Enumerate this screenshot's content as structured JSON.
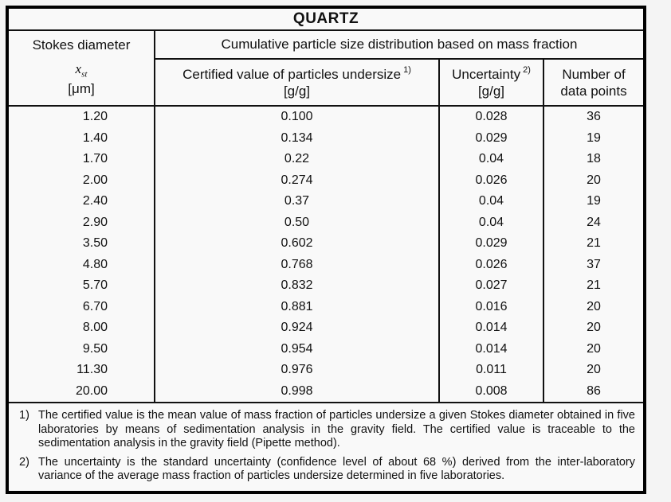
{
  "title": "QUARTZ",
  "header": {
    "col1": {
      "line1": "Stokes diameter",
      "symbol": "x",
      "symbol_sub": "st",
      "unit": "[μm]"
    },
    "span": "Cumulative particle size distribution based on mass fraction",
    "col2": {
      "label": "Certified value of particles undersize",
      "sup": "1)",
      "unit": "[g/g]"
    },
    "col3": {
      "label": "Uncertainty",
      "sup": "2)",
      "unit": "[g/g]"
    },
    "col4": {
      "line1": "Number of",
      "line2": "data points"
    }
  },
  "table": {
    "columns": [
      "Stokes diameter [μm]",
      "Certified value of particles undersize [g/g]",
      "Uncertainty [g/g]",
      "Number of data points"
    ],
    "rows": [
      [
        "1.20",
        "0.100",
        "0.028",
        "36"
      ],
      [
        "1.40",
        "0.134",
        "0.029",
        "19"
      ],
      [
        "1.70",
        "0.22",
        "0.04",
        "18"
      ],
      [
        "2.00",
        "0.274",
        "0.026",
        "20"
      ],
      [
        "2.40",
        "0.37",
        "0.04",
        "19"
      ],
      [
        "2.90",
        "0.50",
        "0.04",
        "24"
      ],
      [
        "3.50",
        "0.602",
        "0.029",
        "21"
      ],
      [
        "4.80",
        "0.768",
        "0.026",
        "37"
      ],
      [
        "5.70",
        "0.832",
        "0.027",
        "21"
      ],
      [
        "6.70",
        "0.881",
        "0.016",
        "20"
      ],
      [
        "8.00",
        "0.924",
        "0.014",
        "20"
      ],
      [
        "9.50",
        "0.954",
        "0.014",
        "20"
      ],
      [
        "11.30",
        "0.976",
        "0.011",
        "20"
      ],
      [
        "20.00",
        "0.998",
        "0.008",
        "86"
      ]
    ]
  },
  "footnotes": [
    {
      "marker": "1)",
      "text": "The certified value is the mean value of mass fraction of particles undersize a given Stokes diameter obtained in five laboratories by means of sedimentation analysis in the gravity field. The certified value is traceable to the sedimentation analysis in the gravity field (Pipette method)."
    },
    {
      "marker": "2)",
      "text": "The uncertainty is the standard uncertainty (confidence level of about 68 %) derived from the inter-laboratory variance of the average mass fraction of particles undersize determined in five laboratories."
    }
  ],
  "colors": {
    "border": "#000000",
    "page_bg": "#f4f4f4",
    "table_bg": "#f9f9f9",
    "text": "#111111"
  }
}
